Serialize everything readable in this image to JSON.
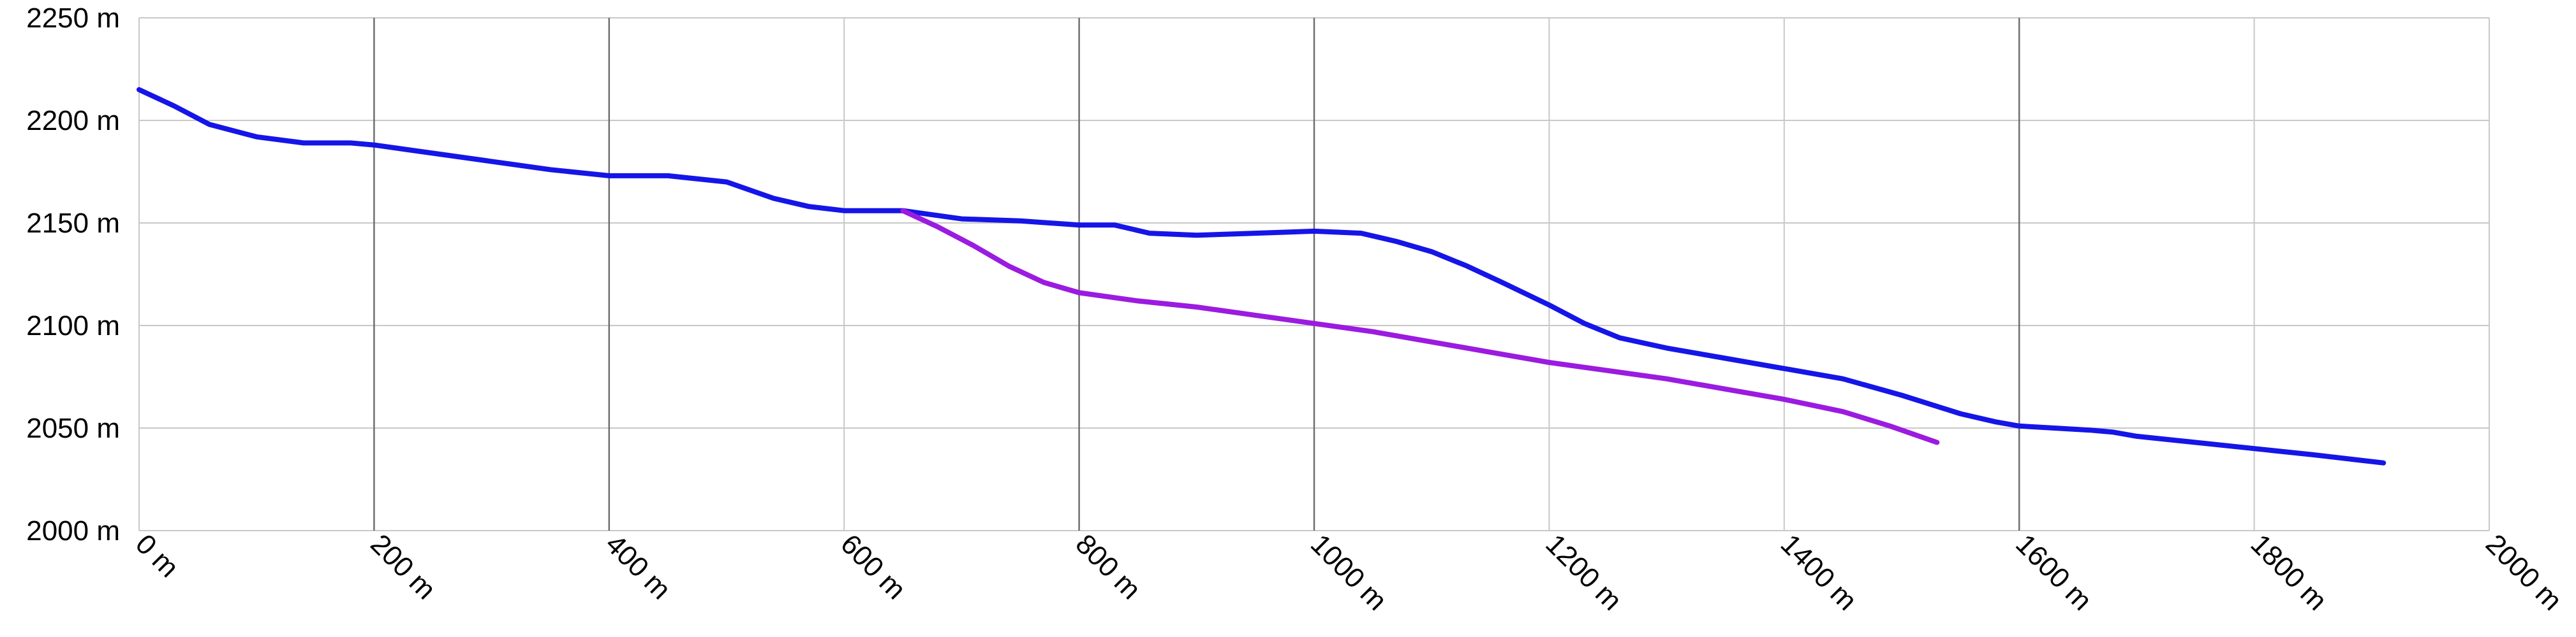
{
  "chart_data": {
    "type": "line",
    "title": "",
    "xlabel": "",
    "ylabel": "",
    "xlim": [
      0,
      2000
    ],
    "ylim": [
      2000,
      2250
    ],
    "x_ticks": [
      0,
      200,
      400,
      600,
      800,
      1000,
      1200,
      1400,
      1600,
      1800,
      2000
    ],
    "x_tick_labels": [
      "0 m",
      "200 m",
      "400 m",
      "600 m",
      "800 m",
      "1000 m",
      "1200 m",
      "1400 m",
      "1600 m",
      "1800 m",
      "2000 m"
    ],
    "y_ticks": [
      2000,
      2050,
      2100,
      2150,
      2200,
      2250
    ],
    "y_tick_labels": [
      "2000 m",
      "2050 m",
      "2100 m",
      "2150 m",
      "2200 m",
      "2250 m"
    ],
    "grid": true,
    "major_x_lines": [
      200,
      400,
      800,
      1000,
      1600
    ],
    "legend": "none",
    "series": [
      {
        "color": "#1515e8",
        "x": [
          0,
          30,
          60,
          100,
          140,
          180,
          200,
          250,
          300,
          350,
          400,
          450,
          500,
          540,
          570,
          600,
          650,
          700,
          750,
          800,
          830,
          860,
          900,
          950,
          1000,
          1040,
          1070,
          1100,
          1130,
          1160,
          1200,
          1230,
          1260,
          1300,
          1350,
          1400,
          1450,
          1500,
          1550,
          1580,
          1600,
          1630,
          1660,
          1680,
          1700,
          1750,
          1800,
          1850,
          1910
        ],
        "y": [
          2215,
          2207,
          2198,
          2192,
          2189,
          2189,
          2188,
          2184,
          2180,
          2176,
          2173,
          2173,
          2170,
          2162,
          2158,
          2156,
          2156,
          2152,
          2151,
          2149,
          2149,
          2145,
          2144,
          2145,
          2146,
          2145,
          2141,
          2136,
          2129,
          2121,
          2110,
          2101,
          2094,
          2089,
          2084,
          2079,
          2074,
          2066,
          2057,
          2053,
          2051,
          2050,
          2049,
          2048,
          2046,
          2043,
          2040,
          2037,
          2033
        ]
      },
      {
        "color": "#9b1be0",
        "x": [
          650,
          680,
          710,
          740,
          770,
          800,
          850,
          900,
          950,
          1000,
          1050,
          1100,
          1150,
          1200,
          1250,
          1300,
          1350,
          1400,
          1450,
          1490,
          1530
        ],
        "y": [
          2156,
          2148,
          2139,
          2129,
          2121,
          2116,
          2112,
          2109,
          2105,
          2101,
          2097,
          2092,
          2087,
          2082,
          2078,
          2074,
          2069,
          2064,
          2058,
          2051,
          2043
        ]
      }
    ]
  }
}
